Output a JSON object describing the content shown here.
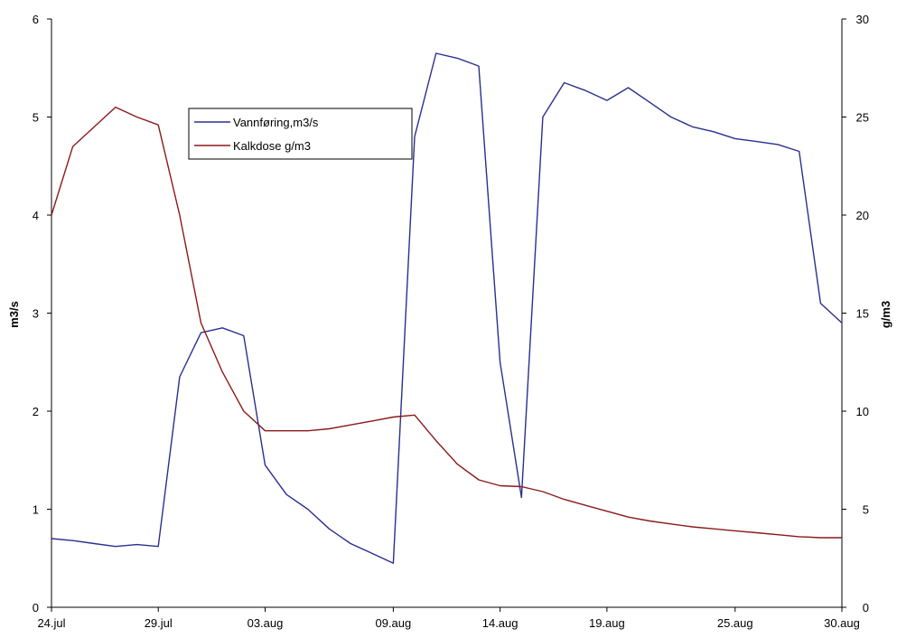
{
  "chart_data": {
    "type": "line",
    "x_ticks": [
      "24.jul",
      "29.jul",
      "03.aug",
      "09.aug",
      "14.aug",
      "19.aug",
      "25.aug",
      "30.aug"
    ],
    "x_range": [
      "24.jul",
      "30.aug"
    ],
    "y_left": {
      "label": "m3/s",
      "range": [
        0,
        6
      ],
      "ticks": [
        0,
        1,
        2,
        3,
        4,
        5,
        6
      ]
    },
    "y_right": {
      "label": "g/m3",
      "range": [
        0,
        30
      ],
      "ticks": [
        0,
        5,
        10,
        15,
        20,
        25,
        30
      ]
    },
    "grid": false,
    "legend": {
      "placement": "top-left inside plot"
    },
    "series": [
      {
        "name": "Vannføring,m3/s",
        "color": "#2A2F8F",
        "axis": "left",
        "points": [
          [
            "24.jul",
            0.7
          ],
          [
            "25.jul",
            0.68
          ],
          [
            "26.jul",
            0.65
          ],
          [
            "27.jul",
            0.62
          ],
          [
            "28.jul",
            0.64
          ],
          [
            "29.jul",
            0.62
          ],
          [
            "30.jul",
            2.35
          ],
          [
            "31.jul",
            2.8
          ],
          [
            "01.aug",
            2.85
          ],
          [
            "02.aug",
            2.77
          ],
          [
            "03.aug",
            1.45
          ],
          [
            "04.aug",
            1.15
          ],
          [
            "05.aug",
            1.0
          ],
          [
            "06.aug",
            0.8
          ],
          [
            "07.aug",
            0.65
          ],
          [
            "08.aug",
            0.55
          ],
          [
            "09.aug",
            0.45
          ],
          [
            "10.aug",
            4.8
          ],
          [
            "11.aug",
            5.65
          ],
          [
            "12.aug",
            5.6
          ],
          [
            "13.aug",
            5.52
          ],
          [
            "14.aug",
            2.5
          ],
          [
            "15.aug",
            1.12
          ],
          [
            "16.aug",
            5.0
          ],
          [
            "17.aug",
            5.35
          ],
          [
            "18.aug",
            5.27
          ],
          [
            "19.aug",
            5.17
          ],
          [
            "20.aug",
            5.3
          ],
          [
            "21.aug",
            5.15
          ],
          [
            "22.aug",
            5.0
          ],
          [
            "23.aug",
            4.9
          ],
          [
            "24.aug",
            4.85
          ],
          [
            "25.aug",
            4.78
          ],
          [
            "26.aug",
            4.75
          ],
          [
            "27.aug",
            4.72
          ],
          [
            "28.aug",
            4.65
          ],
          [
            "29.aug",
            3.1
          ],
          [
            "30.aug",
            2.9
          ]
        ]
      },
      {
        "name": "Kalkdose g/m3",
        "color": "#8B1A1A",
        "axis": "right",
        "points": [
          [
            "24.jul",
            20.0
          ],
          [
            "25.jul",
            23.5
          ],
          [
            "26.jul",
            24.5
          ],
          [
            "27.jul",
            25.5
          ],
          [
            "28.jul",
            25.0
          ],
          [
            "29.jul",
            24.6
          ],
          [
            "30.jul",
            20.0
          ],
          [
            "31.jul",
            14.5
          ],
          [
            "01.aug",
            12.0
          ],
          [
            "02.aug",
            10.0
          ],
          [
            "03.aug",
            9.0
          ],
          [
            "04.aug",
            9.0
          ],
          [
            "05.aug",
            9.0
          ],
          [
            "06.aug",
            9.1
          ],
          [
            "07.aug",
            9.3
          ],
          [
            "08.aug",
            9.5
          ],
          [
            "09.aug",
            9.7
          ],
          [
            "10.aug",
            9.8
          ],
          [
            "11.aug",
            8.5
          ],
          [
            "12.aug",
            7.3
          ],
          [
            "13.aug",
            6.5
          ],
          [
            "14.aug",
            6.2
          ],
          [
            "15.aug",
            6.15
          ],
          [
            "16.aug",
            5.9
          ],
          [
            "17.aug",
            5.5
          ],
          [
            "18.aug",
            5.2
          ],
          [
            "19.aug",
            4.9
          ],
          [
            "20.aug",
            4.6
          ],
          [
            "21.aug",
            4.4
          ],
          [
            "22.aug",
            4.25
          ],
          [
            "23.aug",
            4.1
          ],
          [
            "24.aug",
            4.0
          ],
          [
            "25.aug",
            3.9
          ],
          [
            "26.aug",
            3.8
          ],
          [
            "27.aug",
            3.7
          ],
          [
            "28.aug",
            3.6
          ],
          [
            "29.aug",
            3.55
          ],
          [
            "30.aug",
            3.55
          ]
        ]
      }
    ]
  }
}
